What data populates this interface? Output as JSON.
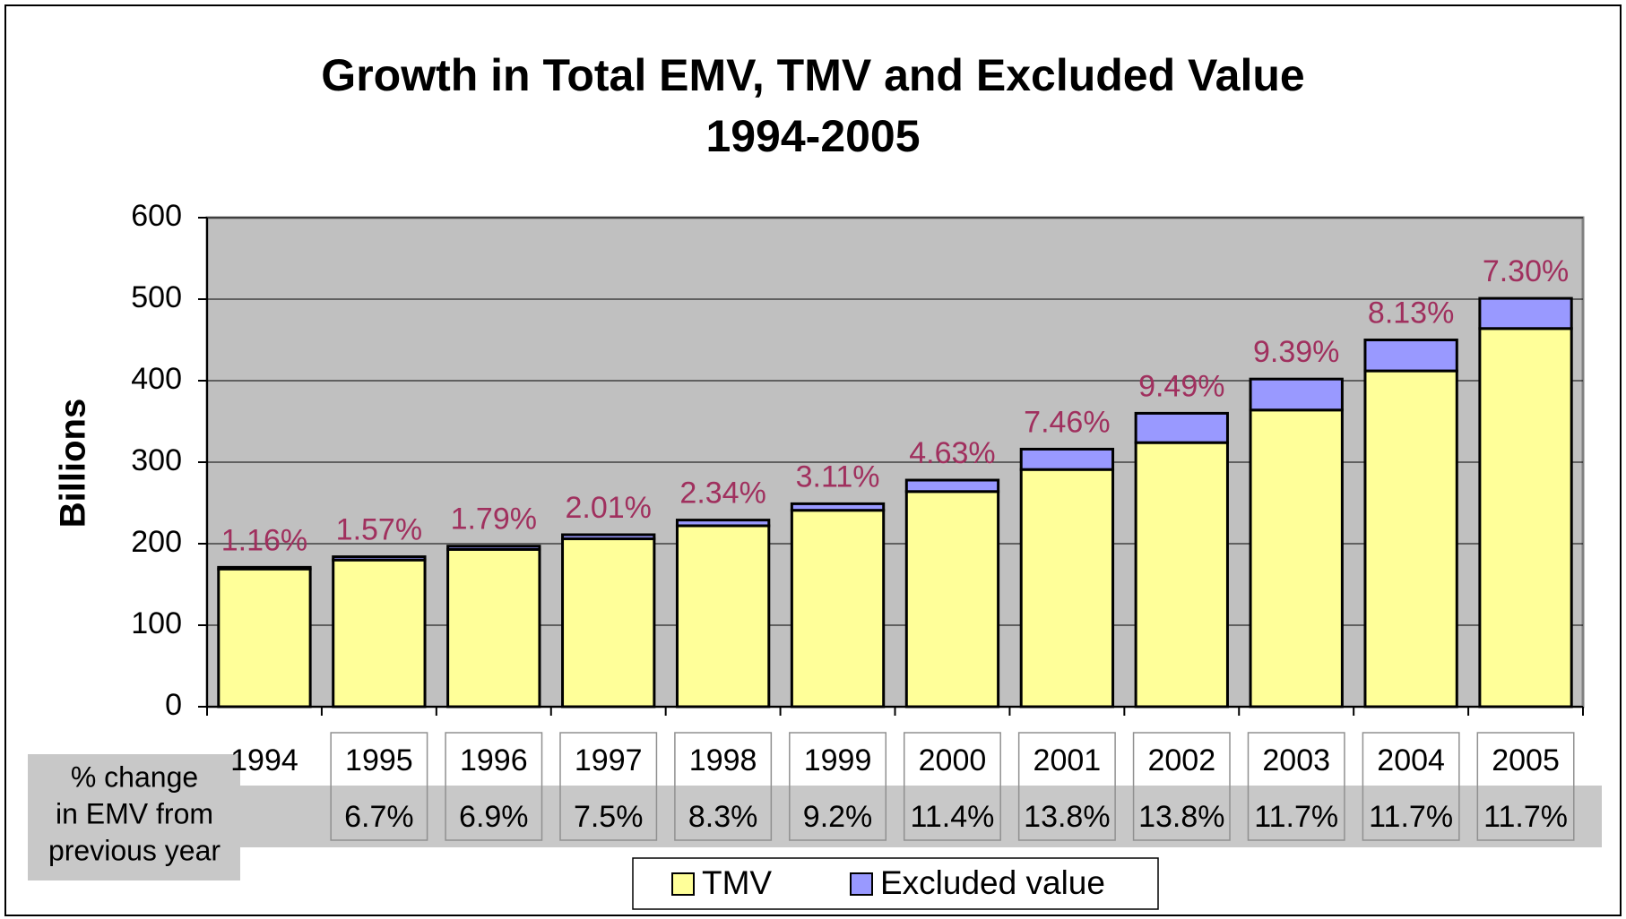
{
  "chart_data": {
    "type": "stacked_bar",
    "title": [
      "Growth in Total EMV, TMV and Excluded Value",
      "1994-2005"
    ],
    "y_label": "Billions",
    "categories": [
      "1994",
      "1995",
      "1996",
      "1997",
      "1998",
      "1999",
      "2000",
      "2001",
      "2002",
      "2003",
      "2004",
      "2005"
    ],
    "series": [
      {
        "name": "TMV",
        "color": "#ffff99",
        "values": [
          169,
          180,
          193,
          206,
          222,
          241,
          264,
          291,
          324,
          364,
          412,
          464
        ]
      },
      {
        "name": "Excluded value",
        "color": "#9999ff",
        "values": [
          2,
          4,
          4,
          5,
          7,
          8,
          14,
          25,
          36,
          38,
          38,
          37
        ]
      }
    ],
    "annotations": [
      "1.16%",
      "1.57%",
      "1.79%",
      "2.01%",
      "2.34%",
      "3.11%",
      "4.63%",
      "7.46%",
      "9.49%",
      "9.39%",
      "8.13%",
      "7.30%"
    ],
    "annotation_color": "#a0305e",
    "table": {
      "label": [
        "% change",
        "in EMV from",
        "previous year"
      ],
      "values": [
        null,
        "6.7%",
        "6.9%",
        "7.5%",
        "8.3%",
        "9.2%",
        "11.4%",
        "13.8%",
        "13.8%",
        "11.7%",
        "11.7%",
        "11.7%"
      ]
    },
    "ylim": [
      0,
      600
    ],
    "yticks": [
      0,
      100,
      200,
      300,
      400,
      500,
      600
    ],
    "grid": true,
    "plot_background": "#c0c0c0",
    "legend": "bottom"
  }
}
